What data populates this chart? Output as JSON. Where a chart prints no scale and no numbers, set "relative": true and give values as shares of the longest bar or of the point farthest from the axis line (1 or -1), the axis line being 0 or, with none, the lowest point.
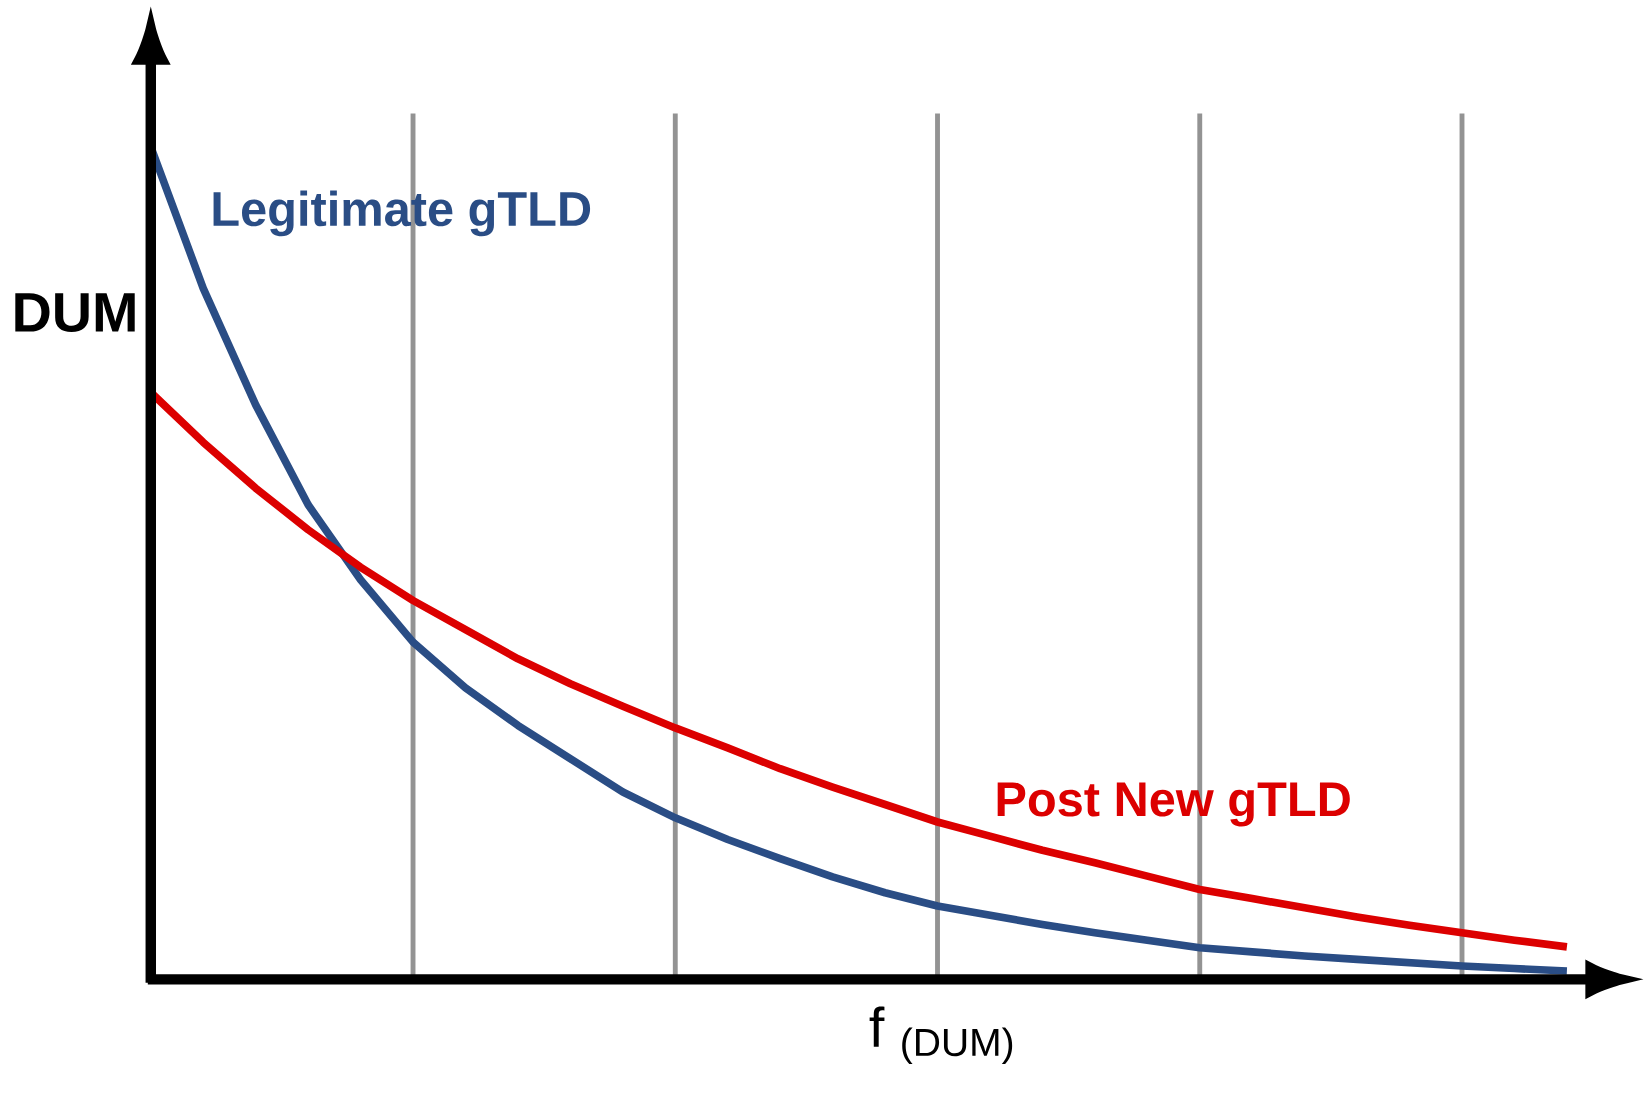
{
  "chart_data": {
    "type": "line",
    "relative": true,
    "ylabel": "DUM",
    "xlabel": "f $_{(DUM)}$",
    "categories": [
      null,
      null,
      null,
      null,
      null,
      null,
      null,
      null,
      null,
      null,
      null,
      null,
      null,
      null,
      null,
      null,
      null,
      null,
      null,
      null,
      null,
      null,
      null,
      null,
      null,
      null,
      null,
      null
    ],
    "grid": "x",
    "series": [
      {
        "name": "Legitimate gTLD",
        "color": "#2a4d85",
        "values": [
          1,
          0.83,
          0.69,
          0.57,
          0.48,
          0.405,
          0.35,
          0.305,
          0.265,
          0.225,
          0.194,
          0.168,
          0.145,
          0.123,
          0.104,
          0.088,
          0.077,
          0.066,
          0.056,
          0.047,
          0.038,
          0.033,
          0.028,
          0.024,
          0.02,
          0.016,
          0.013,
          0.01
        ]
      },
      {
        "name": "Post New gTLD",
        "color": "#dc0000",
        "values": [
          0.705,
          0.645,
          0.59,
          0.54,
          0.495,
          0.455,
          0.42,
          0.385,
          0.355,
          0.328,
          0.302,
          0.278,
          0.253,
          0.231,
          0.21,
          0.189,
          0.172,
          0.155,
          0.14,
          0.124,
          0.108,
          0.097,
          0.086,
          0.075,
          0.065,
          0.056,
          0.047,
          0.039
        ]
      }
    ]
  }
}
